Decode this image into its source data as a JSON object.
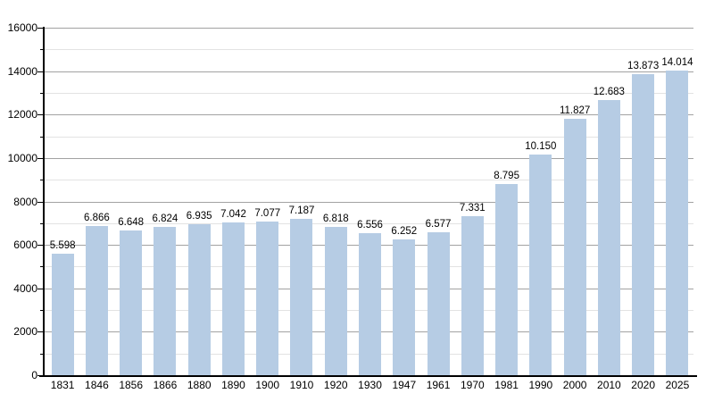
{
  "chart_data": {
    "type": "bar",
    "title": "",
    "xlabel": "",
    "ylabel": "",
    "categories": [
      "1831",
      "1846",
      "1856",
      "1866",
      "1880",
      "1890",
      "1900",
      "1910",
      "1920",
      "1930",
      "1947",
      "1961",
      "1970",
      "1981",
      "1990",
      "2000",
      "2010",
      "2020",
      "2025"
    ],
    "values": [
      5598,
      6866,
      6648,
      6824,
      6935,
      7042,
      7077,
      7187,
      6818,
      6556,
      6252,
      6577,
      7331,
      8795,
      10150,
      11827,
      12683,
      13873,
      14014
    ],
    "value_labels": [
      "5.598",
      "6.866",
      "6.648",
      "6.824",
      "6.935",
      "7.042",
      "7.077",
      "7.187",
      "6.818",
      "6.556",
      "6.252",
      "6.577",
      "7.331",
      "8.795",
      "10.150",
      "11.827",
      "12.683",
      "13.873",
      "14.014"
    ],
    "ylim": [
      0,
      16000
    ],
    "y_major_step": 2000,
    "y_minor_step": 1000,
    "y_tick_labels": [
      "0",
      "2000",
      "4000",
      "6000",
      "8000",
      "10000",
      "12000",
      "14000",
      "16000"
    ],
    "grid": true,
    "legend": "none",
    "colors": {
      "bar_fill": "#b6cce4",
      "major_gridline": "#a2a2a2",
      "minor_gridline": "#e3e3e3",
      "axis": "#000000",
      "text": "#000000",
      "background": "#ffffff"
    }
  }
}
